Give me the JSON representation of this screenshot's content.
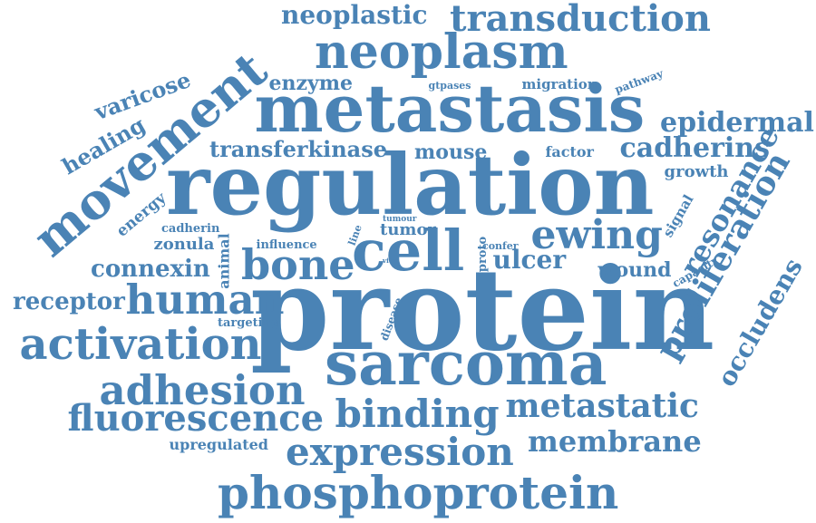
{
  "color": "#4a83b5",
  "words": [
    {
      "text": "protein",
      "weight": 100
    },
    {
      "text": "regulation",
      "weight": 90
    },
    {
      "text": "metastasis",
      "weight": 80
    },
    {
      "text": "sarcoma",
      "weight": 75
    },
    {
      "text": "cell",
      "weight": 70
    },
    {
      "text": "phosphoprotein",
      "weight": 65
    },
    {
      "text": "neoplasm",
      "weight": 62
    },
    {
      "text": "activation",
      "weight": 58
    },
    {
      "text": "movement",
      "weight": 58
    },
    {
      "text": "human",
      "weight": 55
    },
    {
      "text": "adhesion",
      "weight": 55
    },
    {
      "text": "bone",
      "weight": 54
    },
    {
      "text": "expression",
      "weight": 52
    },
    {
      "text": "binding",
      "weight": 50
    },
    {
      "text": "fluorescence",
      "weight": 48
    },
    {
      "text": "transduction",
      "weight": 46
    },
    {
      "text": "proliferation",
      "weight": 45
    },
    {
      "text": "ewing",
      "weight": 45
    },
    {
      "text": "metastatic",
      "weight": 42
    },
    {
      "text": "resonance",
      "weight": 40
    },
    {
      "text": "membrane",
      "weight": 38
    },
    {
      "text": "epidermal",
      "weight": 36
    },
    {
      "text": "cadherins",
      "weight": 36
    },
    {
      "text": "occludens",
      "weight": 35
    },
    {
      "text": "receptor",
      "weight": 33
    },
    {
      "text": "neoplastic",
      "weight": 32
    },
    {
      "text": "connexin",
      "weight": 30
    },
    {
      "text": "transferkinase",
      "weight": 30
    },
    {
      "text": "ulcer",
      "weight": 30
    },
    {
      "text": "varicose",
      "weight": 28
    },
    {
      "text": "healing",
      "weight": 27
    },
    {
      "text": "enzyme",
      "weight": 25
    },
    {
      "text": "mouse",
      "weight": 24
    },
    {
      "text": "wound",
      "weight": 24
    },
    {
      "text": "tumor",
      "weight": 22
    },
    {
      "text": "zonula",
      "weight": 22
    },
    {
      "text": "growth",
      "weight": 22
    },
    {
      "text": "energy",
      "weight": 20
    },
    {
      "text": "migration",
      "weight": 18
    },
    {
      "text": "factor",
      "weight": 18
    },
    {
      "text": "animal",
      "weight": 18
    },
    {
      "text": "signal",
      "weight": 17
    },
    {
      "text": "upregulated",
      "weight": 16
    },
    {
      "text": "influence",
      "weight": 15
    },
    {
      "text": "targeting",
      "weight": 15
    },
    {
      "text": "cadherin",
      "weight": 14
    },
    {
      "text": "proto",
      "weight": 14
    },
    {
      "text": "pathway",
      "weight": 14
    },
    {
      "text": "capacity",
      "weight": 13
    },
    {
      "text": "gtpases",
      "weight": 13
    },
    {
      "text": "disease",
      "weight": 12
    },
    {
      "text": "line",
      "weight": 12
    },
    {
      "text": "confer",
      "weight": 11
    },
    {
      "text": "tumour",
      "weight": 10
    },
    {
      "text": "vitro",
      "weight": 8
    }
  ]
}
